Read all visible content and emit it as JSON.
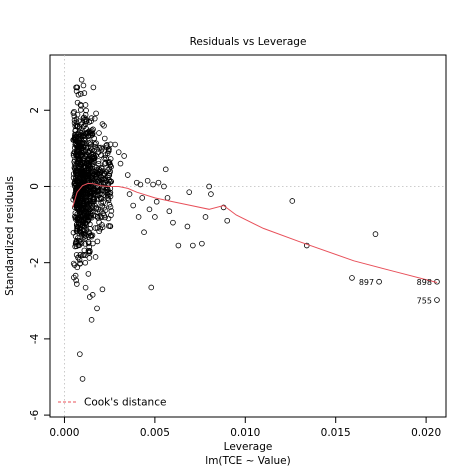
{
  "chart_data": {
    "type": "scatter",
    "title": "Residuals vs Leverage",
    "xlabel": "Leverage",
    "sublabel": "lm(TCE ~ Value)",
    "ylabel": "Standardized residuals",
    "xlim": [
      -0.0008,
      0.0211
    ],
    "ylim": [
      -6.05,
      3.45
    ],
    "x_ticks": [
      "0.000",
      "0.005",
      "0.010",
      "0.015",
      "0.020"
    ],
    "x_tick_values": [
      0,
      0.005,
      0.01,
      0.015,
      0.02
    ],
    "y_ticks": [
      "-6",
      "-4",
      "-2",
      "0",
      "2"
    ],
    "y_tick_values": [
      -6,
      -4,
      -2,
      0,
      2
    ],
    "grid": false,
    "reference_line_y": 0,
    "legend": {
      "position": "bottom-left",
      "entries": [
        "Cook's distance"
      ]
    },
    "cooks_color": "#e8505a",
    "smooth_color": "#e8505a",
    "cluster": {
      "count": 880,
      "x_min": 0.00045,
      "x_mode": 0.0011,
      "x_tail": 0.0026,
      "y_mean": 0.1,
      "y_sd": 1.0
    },
    "points": [
      {
        "x": 0.00095,
        "y": 2.8
      },
      {
        "x": 0.00105,
        "y": 2.65
      },
      {
        "x": 0.0011,
        "y": 2.45
      },
      {
        "x": 0.0016,
        "y": 2.6
      },
      {
        "x": 0.00085,
        "y": -4.4
      },
      {
        "x": 0.001,
        "y": -5.05
      },
      {
        "x": 0.0015,
        "y": -3.5
      },
      {
        "x": 0.0018,
        "y": -3.2
      },
      {
        "x": 0.0014,
        "y": -2.9
      },
      {
        "x": 0.0021,
        "y": -2.7
      },
      {
        "x": 0.0028,
        "y": 1.1
      },
      {
        "x": 0.003,
        "y": 0.9
      },
      {
        "x": 0.0031,
        "y": 0.6
      },
      {
        "x": 0.0033,
        "y": 0.8
      },
      {
        "x": 0.0035,
        "y": 0.3
      },
      {
        "x": 0.0036,
        "y": -0.2
      },
      {
        "x": 0.0038,
        "y": -0.5
      },
      {
        "x": 0.004,
        "y": 0.1
      },
      {
        "x": 0.0041,
        "y": -0.8
      },
      {
        "x": 0.0042,
        "y": 0.05
      },
      {
        "x": 0.0043,
        "y": -0.3
      },
      {
        "x": 0.0044,
        "y": -1.2
      },
      {
        "x": 0.0046,
        "y": 0.15
      },
      {
        "x": 0.0047,
        "y": -0.6
      },
      {
        "x": 0.0048,
        "y": -2.65
      },
      {
        "x": 0.0049,
        "y": 0.05
      },
      {
        "x": 0.005,
        "y": -0.8
      },
      {
        "x": 0.0051,
        "y": -0.4
      },
      {
        "x": 0.0052,
        "y": 0.1
      },
      {
        "x": 0.0055,
        "y": 0.0
      },
      {
        "x": 0.0056,
        "y": 0.45
      },
      {
        "x": 0.0057,
        "y": -0.3
      },
      {
        "x": 0.0058,
        "y": -0.65
      },
      {
        "x": 0.006,
        "y": -0.95
      },
      {
        "x": 0.0063,
        "y": -1.55
      },
      {
        "x": 0.0068,
        "y": -1.05
      },
      {
        "x": 0.0069,
        "y": -0.15
      },
      {
        "x": 0.0071,
        "y": -1.55
      },
      {
        "x": 0.0076,
        "y": -1.5
      },
      {
        "x": 0.0078,
        "y": -0.8
      },
      {
        "x": 0.008,
        "y": 0.0
      },
      {
        "x": 0.0081,
        "y": -0.2
      },
      {
        "x": 0.0088,
        "y": -0.55
      },
      {
        "x": 0.009,
        "y": -0.9
      },
      {
        "x": 0.0126,
        "y": -0.38
      },
      {
        "x": 0.0134,
        "y": -1.55
      },
      {
        "x": 0.0159,
        "y": -2.4
      },
      {
        "x": 0.0172,
        "y": -1.25
      },
      {
        "x": 0.0174,
        "y": -2.5
      },
      {
        "x": 0.0206,
        "y": -2.5
      },
      {
        "x": 0.0206,
        "y": -2.98
      }
    ],
    "labeled_points": [
      {
        "x": 0.0174,
        "y": -2.5,
        "label": "897"
      },
      {
        "x": 0.0206,
        "y": -2.5,
        "label": "898"
      },
      {
        "x": 0.0206,
        "y": -2.98,
        "label": "755"
      }
    ],
    "smooth_curve": [
      [
        0.00045,
        -0.55
      ],
      [
        0.0007,
        -0.15
      ],
      [
        0.001,
        0.02
      ],
      [
        0.0013,
        0.08
      ],
      [
        0.0016,
        0.07
      ],
      [
        0.002,
        0.02
      ],
      [
        0.0025,
        0.0
      ],
      [
        0.003,
        0.0
      ],
      [
        0.0035,
        -0.05
      ],
      [
        0.004,
        -0.15
      ],
      [
        0.005,
        -0.3
      ],
      [
        0.006,
        -0.4
      ],
      [
        0.007,
        -0.5
      ],
      [
        0.008,
        -0.6
      ],
      [
        0.0088,
        -0.5
      ],
      [
        0.0095,
        -0.75
      ],
      [
        0.011,
        -1.1
      ],
      [
        0.013,
        -1.45
      ],
      [
        0.016,
        -1.95
      ],
      [
        0.018,
        -2.2
      ],
      [
        0.0206,
        -2.52
      ]
    ]
  }
}
